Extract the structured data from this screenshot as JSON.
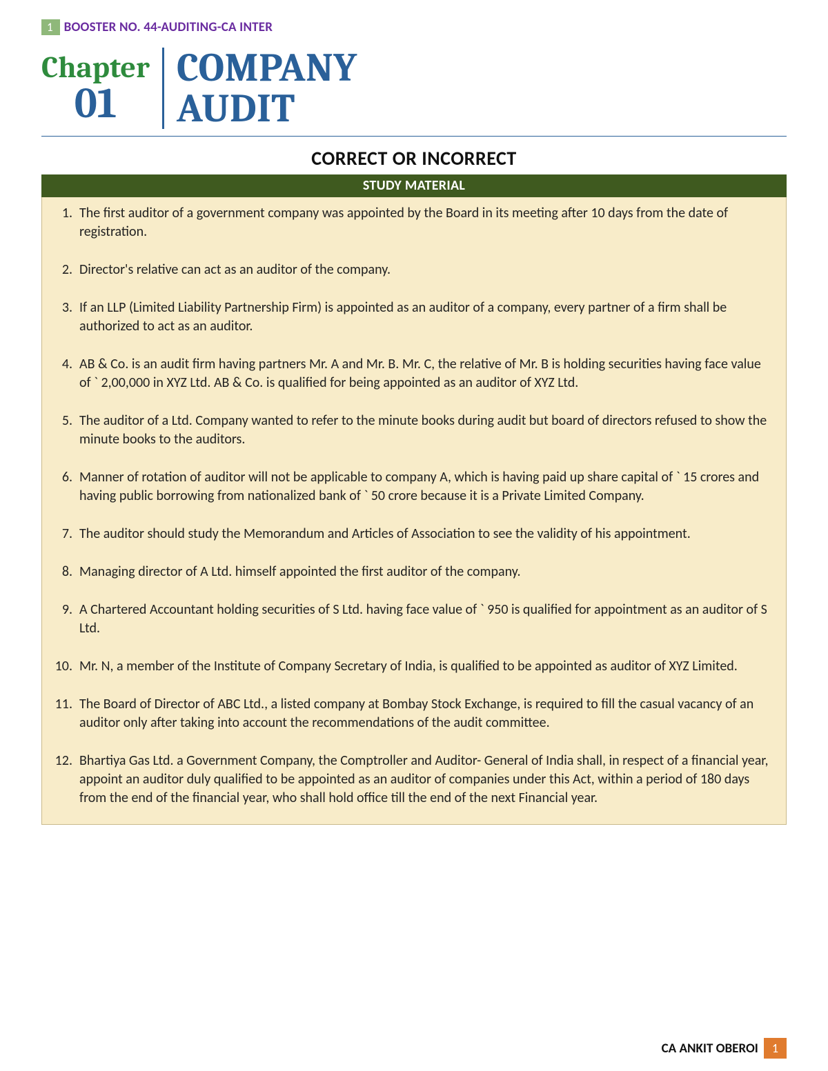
{
  "header": {
    "top_badge_number": "1",
    "top_title": "BOOSTER NO. 44-AUDITING-CA INTER",
    "chapter_label": "Chapter",
    "chapter_number": "01",
    "main_title_line1": "COMPANY",
    "main_title_line2": "AUDIT"
  },
  "section": {
    "heading": "CORRECT OR INCORRECT",
    "band": "STUDY MATERIAL"
  },
  "items": [
    "The first auditor of a government company was appointed by the Board in its meeting after 10 days from the date of registration.",
    "Director's relative can act as an auditor of the company.",
    "If an LLP (Limited Liability Partnership Firm) is appointed as an auditor of a company, every partner of a firm shall be authorized to act as an auditor.",
    "AB & Co. is an audit firm having partners Mr. A and Mr. B. Mr. C, the relative of Mr. B is holding securities having face value of ` 2,00,000 in XYZ Ltd. AB & Co. is qualified for being appointed as an auditor of XYZ Ltd.",
    "The auditor of a Ltd. Company wanted to refer to the minute books during audit but board of directors refused to show the minute books to the auditors.",
    "Manner of rotation of auditor will not be applicable to company A, which is having paid up share capital of ` 15 crores and having public borrowing from nationalized bank of ` 50 crore because it is a Private Limited Company.",
    "The auditor should study the Memorandum and Articles of Association to see the validity of his appointment.",
    "Managing director of A Ltd. himself appointed the first auditor of the company.",
    "A Chartered Accountant holding securities of S Ltd. having face value of ` 950 is qualified for appointment as an auditor of S Ltd.",
    "Mr. N, a member of the Institute of Company Secretary of India, is qualified to be appointed as auditor of XYZ Limited.",
    "The Board of Director of ABC Ltd., a listed company at Bombay Stock Exchange, is required to fill the casual vacancy of an auditor only after taking into account the recommendations of the audit committee.",
    "Bhartiya Gas Ltd. a Government Company, the Comptroller and Auditor- General of India shall, in respect of a financial year, appoint an auditor duly qualified to be appointed as an auditor of companies under this Act, within a period of 180 days from the end of the financial year, who shall hold office till the end of the next Financial year."
  ],
  "footer": {
    "author": "CA ANKIT OBEROI",
    "page_number": "1"
  },
  "colors": {
    "top_badge_bg": "#8fb87a",
    "top_title_color": "#6a2ca0",
    "chapter_label_color": "#2e8b3d",
    "chapter_num_color": "#2a6099",
    "main_title_color": "#2a6099",
    "band_bg": "#3f5a1f",
    "content_bg": "#f8ecc9",
    "footer_badge_bg": "#e07b2e"
  }
}
